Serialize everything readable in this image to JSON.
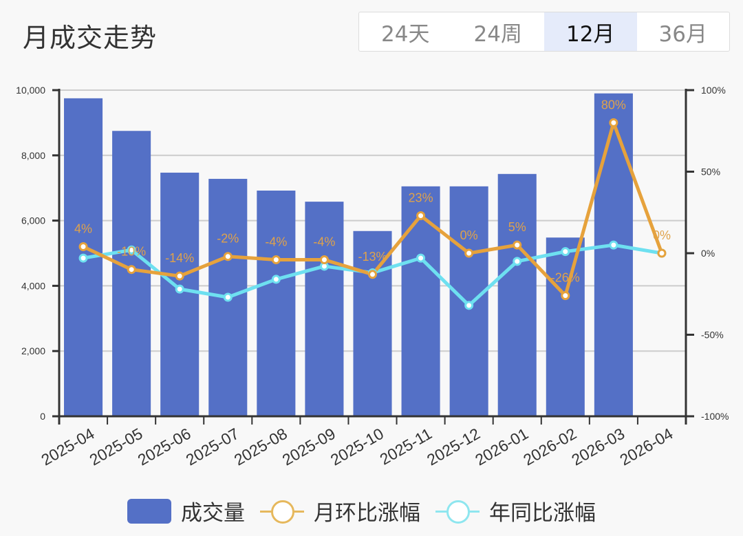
{
  "header": {
    "title": "月成交走势",
    "range_tabs": [
      {
        "label": "24天",
        "active": false
      },
      {
        "label": "24周",
        "active": false
      },
      {
        "label": "12月",
        "active": true
      },
      {
        "label": "36月",
        "active": false
      }
    ]
  },
  "colors": {
    "bar": "#5470c6",
    "mom_line": "#e6a23c",
    "yoy_line": "#6ee0f0",
    "mom_label": "#e0a24a",
    "grid": "#cccccc",
    "axis": "#333333"
  },
  "legend": [
    {
      "label": "成交量",
      "type": "bar"
    },
    {
      "label": "月环比涨幅",
      "type": "line"
    },
    {
      "label": "年同比涨幅",
      "type": "line"
    }
  ],
  "chart_data": {
    "type": "bar",
    "title": "月成交走势",
    "categories": [
      "2025-04",
      "2025-05",
      "2025-06",
      "2025-07",
      "2025-08",
      "2025-09",
      "2025-10",
      "2025-11",
      "2025-12",
      "2026-01",
      "2026-02",
      "2026-03",
      "2026-04"
    ],
    "series": [
      {
        "name": "成交量",
        "type": "bar",
        "axis": "left",
        "values": [
          9750,
          8750,
          7470,
          7280,
          6920,
          6580,
          5680,
          7050,
          7050,
          7430,
          5480,
          9900,
          null
        ]
      },
      {
        "name": "月环比涨幅",
        "type": "line",
        "axis": "right",
        "values": [
          4,
          -10,
          -14,
          -2,
          -4,
          -4,
          -13,
          23,
          0,
          5,
          -26,
          80,
          0
        ],
        "labels": [
          "4%",
          "-10%",
          "-14%",
          "-2%",
          "-4%",
          "-4%",
          "-13%",
          "23%",
          "0%",
          "5%",
          "-26%",
          "80%",
          "0%"
        ]
      },
      {
        "name": "年同比涨幅",
        "type": "line",
        "axis": "right",
        "values": [
          -3,
          2,
          -22,
          -27,
          -16,
          -8,
          -12,
          -3,
          -32,
          -5,
          1,
          5,
          0
        ]
      }
    ],
    "y_left": {
      "ticks": [
        "0",
        "2,000",
        "4,000",
        "6,000",
        "8,000",
        "10,000"
      ],
      "range": [
        0,
        10000
      ]
    },
    "y_right": {
      "ticks": [
        "-100%",
        "-50%",
        "0%",
        "50%",
        "100%"
      ],
      "range": [
        -100,
        100
      ]
    },
    "grid": true,
    "legend_position": "bottom"
  }
}
